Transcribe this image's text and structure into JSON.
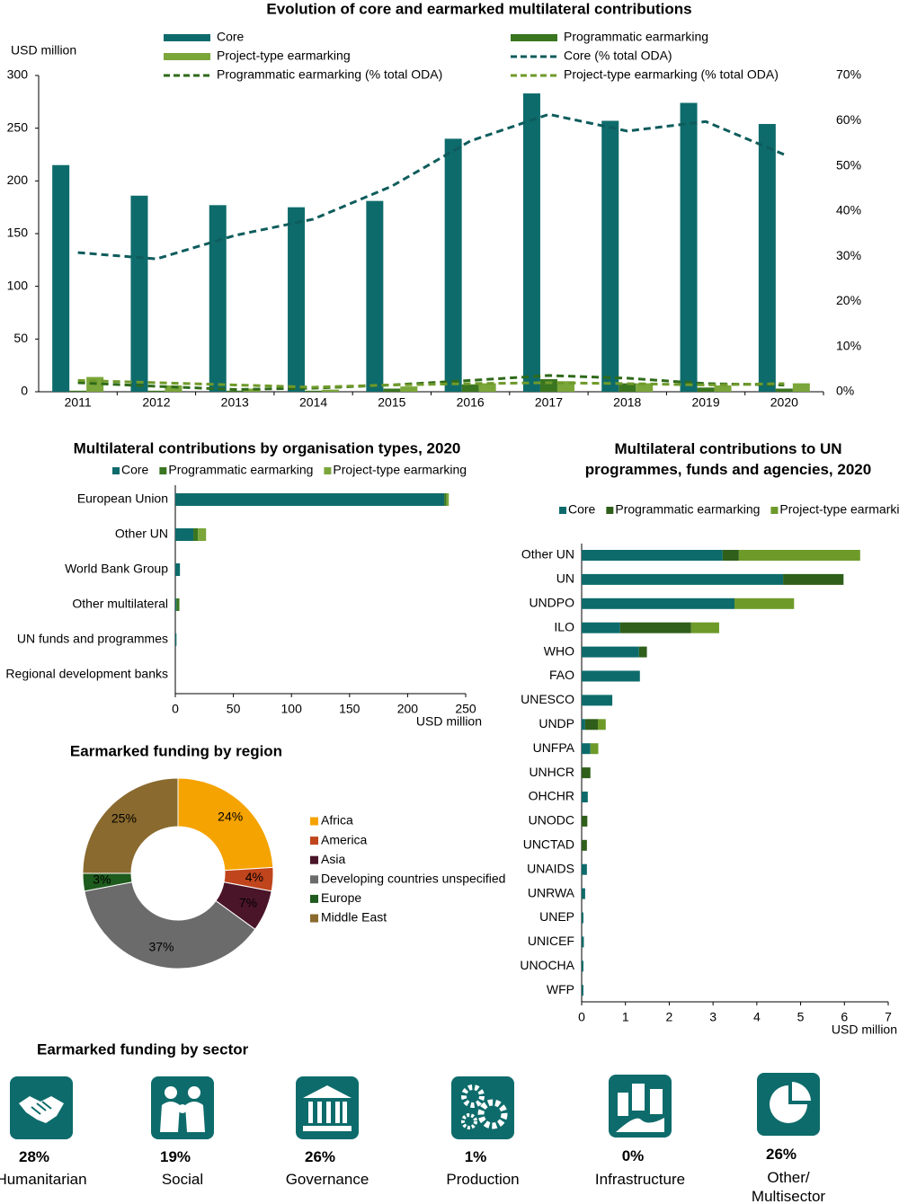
{
  "chart_data": [
    {
      "type": "combo",
      "title": "Evolution of core and earmarked multilateral contributions",
      "y_label": "USD million",
      "categories": [
        "2011",
        "2012",
        "2013",
        "2014",
        "2015",
        "2016",
        "2017",
        "2018",
        "2019",
        "2020"
      ],
      "series": [
        {
          "name": "Core",
          "mark": "bar",
          "color": "#0e6b6b",
          "values": [
            215,
            186,
            177,
            175,
            181,
            240,
            283,
            257,
            274,
            254
          ]
        },
        {
          "name": "Programmatic earmarking",
          "mark": "bar",
          "color": "#3a7520",
          "values": [
            1,
            1,
            1,
            1,
            3,
            7,
            12,
            8,
            4,
            3
          ]
        },
        {
          "name": "Project-type earmarking",
          "mark": "bar",
          "color": "#7aa63a",
          "values": [
            14,
            6,
            3,
            2,
            5,
            8,
            10,
            8,
            6,
            8
          ]
        },
        {
          "name": "Core (% total ODA)",
          "mark": "line",
          "axis": "y2",
          "line_style": "dashed",
          "color": "#0e5c5c",
          "values": [
            30.8,
            29.4,
            34.6,
            38.2,
            45.5,
            55.5,
            61.4,
            57.7,
            59.8,
            52.5
          ]
        },
        {
          "name": "Programmatic earmarking (% total ODA)",
          "mark": "line",
          "axis": "y2",
          "line_style": "dashed",
          "color": "#2f6a1a",
          "values": [
            2,
            1.2,
            0.5,
            0.8,
            1.5,
            2.5,
            3.6,
            3,
            1.8,
            1.5
          ]
        },
        {
          "name": "Project-type earmarking (% total ODA)",
          "mark": "line",
          "axis": "y2",
          "line_style": "dashed",
          "color": "#6f9a2a",
          "values": [
            2.5,
            2,
            1.5,
            1,
            1.5,
            1.8,
            2,
            1.8,
            1.5,
            1.8
          ]
        }
      ],
      "ylim": [
        0,
        300
      ],
      "yticks": [
        0,
        50,
        100,
        150,
        200,
        250,
        300
      ],
      "y2lim": [
        0,
        70
      ],
      "y2ticks": [
        {
          "value": 0,
          "label": "0%"
        },
        {
          "value": 10,
          "label": "10%"
        },
        {
          "value": 20,
          "label": "20%"
        },
        {
          "value": 30,
          "label": "30%"
        },
        {
          "value": 40,
          "label": "40%"
        },
        {
          "value": 50,
          "label": "50%"
        },
        {
          "value": 60,
          "label": "60%"
        },
        {
          "value": 70,
          "label": "70%"
        }
      ]
    },
    {
      "type": "hbar-stacked",
      "title": "Multilateral contributions by organisation types, 2020",
      "x_label": "USD million",
      "categories": [
        "European Union",
        "Other UN",
        "World Bank Group",
        "Other multilateral",
        "UN funds and programmes",
        "Regional development banks"
      ],
      "series": [
        {
          "name": "Core",
          "color": "#0e6b6b",
          "values": [
            231.5,
            15.5,
            4,
            1,
            1,
            0
          ]
        },
        {
          "name": "Programmatic earmarking",
          "color": "#3a7520",
          "values": [
            2,
            4,
            0,
            2.5,
            0,
            0
          ]
        },
        {
          "name": "Project-type earmarking",
          "color": "#7aa63a",
          "values": [
            2,
            7,
            0,
            0,
            0,
            0
          ]
        }
      ],
      "xlim": [
        0,
        250
      ],
      "xticks": [
        0,
        50,
        100,
        150,
        200,
        250
      ]
    },
    {
      "type": "hbar-stacked",
      "title": "Multilateral contributions to UN programmes, funds and agencies, 2020",
      "x_label": "USD million",
      "categories": [
        "Other UN",
        "UN",
        "UNDPO",
        "ILO",
        "WHO",
        "FAO",
        "UNESCO",
        "UNDP",
        "UNFPA",
        "UNHCR",
        "OHCHR",
        "UNODC",
        "UNCTAD",
        "UNAIDS",
        "UNRWA",
        "UNEP",
        "UNICEF",
        "UNOCHA",
        "WFP"
      ],
      "series": [
        {
          "name": "Core",
          "color": "#0e6b6b",
          "values": [
            3.22,
            4.6,
            3.49,
            0.88,
            1.31,
            1.33,
            0.7,
            0.08,
            0.2,
            0,
            0.14,
            0,
            0,
            0.12,
            0.08,
            0.04,
            0.05,
            0.04,
            0.04
          ]
        },
        {
          "name": "Programmatic earmarking",
          "color": "#2f5f1a",
          "values": [
            0.37,
            1.38,
            0,
            1.62,
            0.18,
            0,
            0,
            0.29,
            0,
            0.2,
            0,
            0.13,
            0.12,
            0,
            0,
            0,
            0,
            0,
            0
          ]
        },
        {
          "name": "Project-type earmarking",
          "color": "#6e9a2a",
          "values": [
            2.77,
            0,
            1.36,
            0.64,
            0,
            0,
            0,
            0.18,
            0.18,
            0,
            0,
            0,
            0,
            0,
            0,
            0,
            0,
            0,
            0
          ]
        }
      ],
      "xlim": [
        0,
        7
      ],
      "xticks": [
        0,
        1,
        2,
        3,
        4,
        5,
        6,
        7
      ]
    },
    {
      "type": "donut",
      "title": "Earmarked funding by region",
      "categories": [
        "Africa",
        "America",
        "Asia",
        "Developing countries unspecified",
        "Europe",
        "Middle East"
      ],
      "values": [
        24,
        4,
        7,
        37,
        3,
        25
      ],
      "value_labels": [
        "24%",
        "4%",
        "7%",
        "37%",
        "3%",
        "25%"
      ],
      "colors": [
        "#f5a300",
        "#c0441c",
        "#4a1528",
        "#6b6b6b",
        "#1e5b1e",
        "#8a6a2e"
      ]
    }
  ],
  "sector_panel": {
    "title": "Earmarked funding by sector",
    "items": [
      {
        "share": "28%",
        "label": "Humanitarian"
      },
      {
        "share": "19%",
        "label": "Social"
      },
      {
        "share": "26%",
        "label": "Governance"
      },
      {
        "share": "1%",
        "label": "Production"
      },
      {
        "share": "0%",
        "label": "Infrastructure"
      },
      {
        "share": "26%",
        "label": "Other/ Multisector"
      }
    ]
  }
}
